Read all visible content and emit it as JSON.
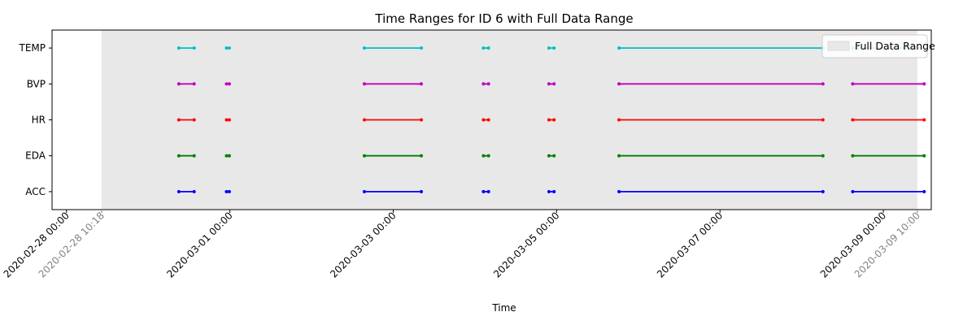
{
  "chart_data": {
    "type": "timeline",
    "title": "Time Ranges for ID 6 with Full Data Range",
    "xlabel": "Time",
    "ylabel": "",
    "categories": [
      "ACC",
      "EDA",
      "HR",
      "BVP",
      "TEMP"
    ],
    "x_range": [
      "2020-02-27 19:45",
      "2020-03-09 14:05"
    ],
    "x_ticks": [
      "2020-02-28 00:00",
      "2020-03-01 00:00",
      "2020-03-03 00:00",
      "2020-03-05 00:00",
      "2020-03-07 00:00",
      "2020-03-09 00:00"
    ],
    "full_range": {
      "label": "Full Data Range",
      "start": "2020-02-28 10:18",
      "end": "2020-03-09 10:00",
      "color": "#e8e8e8"
    },
    "extra_tick_color": "#808080",
    "legend": {
      "position": "top-right",
      "entries": [
        "Full Data Range"
      ]
    },
    "grid": false,
    "series": [
      {
        "category": "ACC",
        "color": "#0000ff",
        "segments": [
          [
            "2020-02-29 09:00",
            "2020-02-29 13:30"
          ],
          [
            "2020-02-29 23:00",
            "2020-02-29 23:50"
          ],
          [
            "2020-03-02 15:30",
            "2020-03-03 08:15"
          ],
          [
            "2020-03-04 02:30",
            "2020-03-04 04:00"
          ],
          [
            "2020-03-04 21:45",
            "2020-03-04 23:15"
          ],
          [
            "2020-03-05 18:20",
            "2020-03-08 06:15"
          ],
          [
            "2020-03-08 15:00",
            "2020-03-09 12:00"
          ]
        ]
      },
      {
        "category": "EDA",
        "color": "#008000",
        "segments": [
          [
            "2020-02-29 09:00",
            "2020-02-29 13:30"
          ],
          [
            "2020-02-29 23:00",
            "2020-02-29 23:50"
          ],
          [
            "2020-03-02 15:30",
            "2020-03-03 08:15"
          ],
          [
            "2020-03-04 02:30",
            "2020-03-04 04:00"
          ],
          [
            "2020-03-04 21:45",
            "2020-03-04 23:15"
          ],
          [
            "2020-03-05 18:20",
            "2020-03-08 06:15"
          ],
          [
            "2020-03-08 15:00",
            "2020-03-09 12:00"
          ]
        ]
      },
      {
        "category": "HR",
        "color": "#ff0000",
        "segments": [
          [
            "2020-02-29 09:00",
            "2020-02-29 13:30"
          ],
          [
            "2020-02-29 23:00",
            "2020-02-29 23:50"
          ],
          [
            "2020-03-02 15:30",
            "2020-03-03 08:15"
          ],
          [
            "2020-03-04 02:30",
            "2020-03-04 04:00"
          ],
          [
            "2020-03-04 21:45",
            "2020-03-04 23:15"
          ],
          [
            "2020-03-05 18:20",
            "2020-03-08 06:15"
          ],
          [
            "2020-03-08 15:00",
            "2020-03-09 12:00"
          ]
        ]
      },
      {
        "category": "BVP",
        "color": "#bf00bf",
        "segments": [
          [
            "2020-02-29 09:00",
            "2020-02-29 13:30"
          ],
          [
            "2020-02-29 23:00",
            "2020-02-29 23:50"
          ],
          [
            "2020-03-02 15:30",
            "2020-03-03 08:15"
          ],
          [
            "2020-03-04 02:30",
            "2020-03-04 04:00"
          ],
          [
            "2020-03-04 21:45",
            "2020-03-04 23:15"
          ],
          [
            "2020-03-05 18:20",
            "2020-03-08 06:15"
          ],
          [
            "2020-03-08 15:00",
            "2020-03-09 12:00"
          ]
        ]
      },
      {
        "category": "TEMP",
        "color": "#00bfbf",
        "segments": [
          [
            "2020-02-29 09:00",
            "2020-02-29 13:30"
          ],
          [
            "2020-02-29 23:00",
            "2020-02-29 23:50"
          ],
          [
            "2020-03-02 15:30",
            "2020-03-03 08:15"
          ],
          [
            "2020-03-04 02:30",
            "2020-03-04 04:00"
          ],
          [
            "2020-03-04 21:45",
            "2020-03-04 23:15"
          ],
          [
            "2020-03-05 18:20",
            "2020-03-08 06:15"
          ],
          [
            "2020-03-08 15:00",
            "2020-03-09 12:00"
          ]
        ]
      }
    ]
  }
}
